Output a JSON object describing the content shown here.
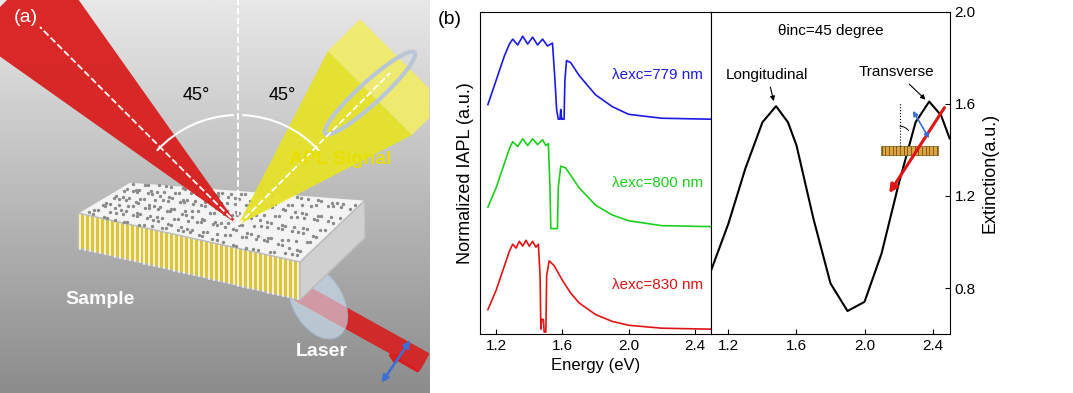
{
  "panel_labels": [
    "(a)",
    "(b)"
  ],
  "schematic": {
    "angle_labels": [
      "45°",
      "45°"
    ],
    "signal_label": "APL Signal",
    "sample_label": "Sample",
    "laser_label": "Laser"
  },
  "chart_data": [
    {
      "type": "line",
      "y_label": "Normalized IAPL (a.u.)",
      "x_label": "Energy (eV)",
      "xlim": [
        1.1,
        2.5
      ],
      "xticks": [
        1.2,
        1.6,
        2.0,
        2.4
      ],
      "ylim": [
        0,
        3.3
      ],
      "tick_labels": "x",
      "series": [
        {
          "name": "λexc=779 nm",
          "color": "#1a1ae6",
          "x": [
            1.15,
            1.2,
            1.25,
            1.28,
            1.3,
            1.33,
            1.36,
            1.39,
            1.42,
            1.45,
            1.48,
            1.51,
            1.54,
            1.555,
            1.565,
            1.575,
            1.585,
            1.59,
            1.595,
            1.6,
            1.61,
            1.615,
            1.625,
            1.65,
            1.7,
            1.8,
            1.9,
            2.0,
            2.2,
            2.5
          ],
          "values": [
            2.35,
            2.6,
            2.85,
            2.97,
            3.02,
            2.96,
            3.05,
            2.97,
            3.04,
            2.96,
            3.02,
            2.95,
            2.98,
            2.6,
            2.3,
            2.2,
            2.2,
            2.3,
            2.2,
            2.2,
            2.2,
            2.6,
            2.8,
            2.78,
            2.65,
            2.45,
            2.33,
            2.25,
            2.21,
            2.2
          ]
        },
        {
          "name": "λexc=800 nm",
          "color": "#1ccf1c",
          "x": [
            1.15,
            1.2,
            1.25,
            1.28,
            1.3,
            1.33,
            1.36,
            1.39,
            1.42,
            1.45,
            1.48,
            1.5,
            1.515,
            1.525,
            1.53,
            1.57,
            1.575,
            1.59,
            1.62,
            1.66,
            1.7,
            1.8,
            1.9,
            2.0,
            2.2,
            2.5
          ],
          "values": [
            1.3,
            1.5,
            1.75,
            1.9,
            1.97,
            1.92,
            2.0,
            1.93,
            2.0,
            1.94,
            1.99,
            1.93,
            1.95,
            1.5,
            1.08,
            1.08,
            1.5,
            1.72,
            1.7,
            1.6,
            1.5,
            1.32,
            1.22,
            1.16,
            1.11,
            1.1
          ]
        },
        {
          "name": "λexc=830 nm",
          "color": "#e01414",
          "x": [
            1.15,
            1.2,
            1.25,
            1.28,
            1.3,
            1.32,
            1.34,
            1.36,
            1.38,
            1.4,
            1.42,
            1.44,
            1.455,
            1.465,
            1.47,
            1.475,
            1.485,
            1.49,
            1.5,
            1.505,
            1.52,
            1.55,
            1.6,
            1.65,
            1.7,
            1.8,
            1.9,
            2.0,
            2.2,
            2.5
          ],
          "values": [
            0.25,
            0.45,
            0.7,
            0.85,
            0.92,
            0.88,
            0.95,
            0.9,
            0.96,
            0.9,
            0.95,
            0.89,
            0.92,
            0.6,
            0.05,
            0.15,
            0.15,
            0.02,
            0.02,
            0.6,
            0.75,
            0.7,
            0.55,
            0.42,
            0.32,
            0.2,
            0.13,
            0.09,
            0.06,
            0.05
          ]
        }
      ]
    },
    {
      "type": "line",
      "title": "θinc=45 degree",
      "y_label": "Extinction(a.u.)",
      "xlim": [
        1.1,
        2.5
      ],
      "xticks": [
        1.2,
        1.6,
        2.0,
        2.4
      ],
      "ylim": [
        0.6,
        2.0
      ],
      "yticks": [
        0.8,
        1.2,
        1.6,
        2.0
      ],
      "color": "#000000",
      "x": [
        1.1,
        1.2,
        1.3,
        1.4,
        1.48,
        1.55,
        1.6,
        1.7,
        1.8,
        1.9,
        2.0,
        2.1,
        2.2,
        2.3,
        2.38,
        2.45,
        2.5
      ],
      "values": [
        0.88,
        1.08,
        1.32,
        1.52,
        1.59,
        1.52,
        1.42,
        1.1,
        0.82,
        0.7,
        0.74,
        0.95,
        1.25,
        1.52,
        1.61,
        1.55,
        1.45
      ],
      "annotations": [
        {
          "text": "Longitudinal",
          "x": 1.47,
          "y": 1.6
        },
        {
          "text": "Transverse",
          "x": 2.37,
          "y": 1.61
        }
      ]
    }
  ]
}
